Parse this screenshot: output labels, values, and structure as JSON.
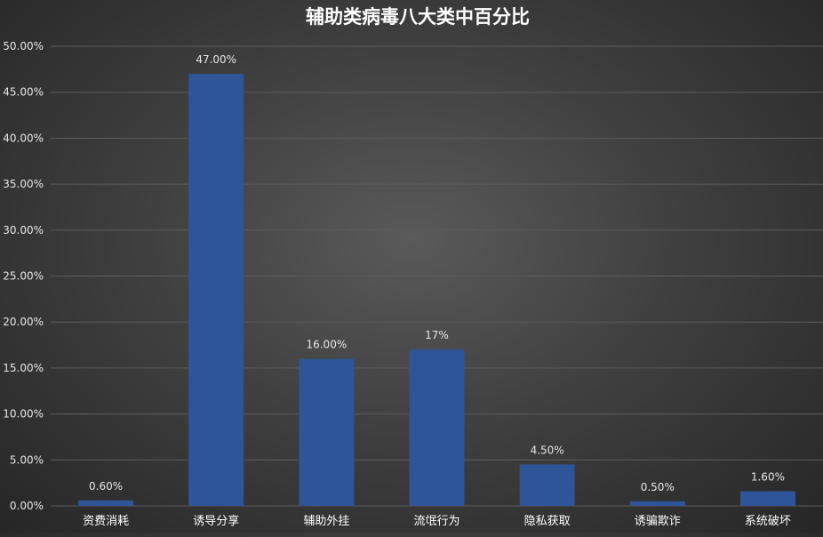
{
  "chart_data": {
    "type": "bar",
    "title": "辅助类病毒八大类中百分比",
    "xlabel": "",
    "ylabel": "",
    "categories": [
      "资费消耗",
      "诱导分享",
      "辅助外挂",
      "流氓行为",
      "隐私获取",
      "诱骗欺诈",
      "系统破坏"
    ],
    "values": [
      0.6,
      47.0,
      16.0,
      17.0,
      4.5,
      0.5,
      1.6
    ],
    "data_labels": [
      "0.60%",
      "47.00%",
      "16.00%",
      "17%",
      "4.50%",
      "0.50%",
      "1.60%"
    ],
    "ylim": [
      0,
      50
    ],
    "yticks": [
      0,
      5,
      10,
      15,
      20,
      25,
      30,
      35,
      40,
      45,
      50
    ],
    "ytick_labels": [
      "0.00%",
      "5.00%",
      "10.00%",
      "15.00%",
      "20.00%",
      "25.00%",
      "30.00%",
      "35.00%",
      "40.00%",
      "45.00%",
      "50.00%"
    ],
    "grid": true,
    "legend": "none",
    "colors": {
      "bar": "#2e5597",
      "grid": "#5c5c5c",
      "text": "#ffffff",
      "tick_text": "#e6e6e6"
    }
  }
}
